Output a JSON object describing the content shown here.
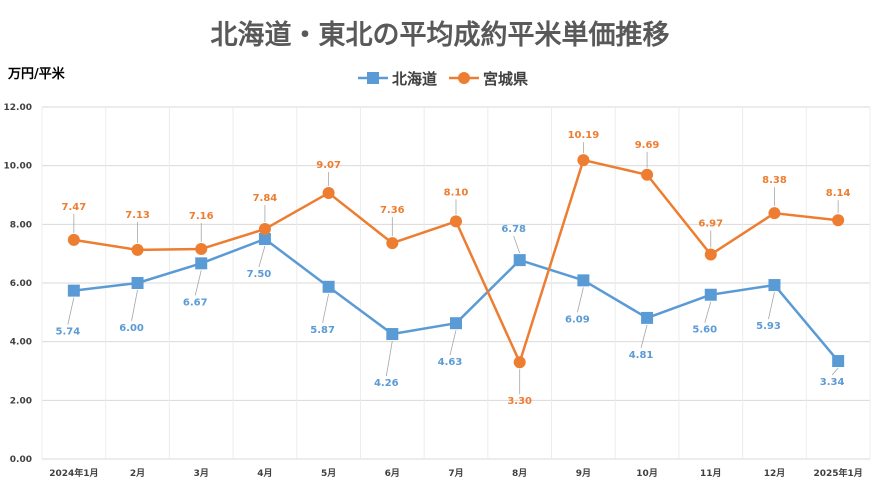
{
  "chart_data": {
    "type": "line",
    "title": "北海道・東北の平均成約平米単価推移",
    "ylabel": "万円/平米",
    "categories": [
      "2024年1月",
      "2月",
      "3月",
      "4月",
      "5月",
      "6月",
      "7月",
      "8月",
      "9月",
      "10月",
      "11月",
      "12月",
      "2025年1月"
    ],
    "ylim": [
      0,
      12
    ],
    "yticks": [
      "0.00",
      "2.00",
      "4.00",
      "6.00",
      "8.00",
      "10.00",
      "12.00"
    ],
    "grid": true,
    "legend_position": "top-center",
    "series": [
      {
        "name": "北海道",
        "color": "#5b9bd5",
        "marker": "square",
        "values": [
          5.74,
          6.0,
          6.67,
          7.5,
          5.87,
          4.26,
          4.63,
          6.78,
          6.09,
          4.81,
          5.6,
          5.93,
          3.34
        ],
        "labels": [
          "5.74",
          "6.00",
          "6.67",
          "7.50",
          "5.87",
          "4.26",
          "4.63",
          "6.78",
          "6.09",
          "4.81",
          "5.60",
          "5.93",
          "3.34"
        ]
      },
      {
        "name": "宮城県",
        "color": "#ed7d31",
        "marker": "circle",
        "values": [
          7.47,
          7.13,
          7.16,
          7.84,
          9.07,
          7.36,
          8.1,
          3.3,
          10.19,
          9.69,
          6.97,
          8.38,
          8.14
        ],
        "labels": [
          "7.47",
          "7.13",
          "7.16",
          "7.84",
          "9.07",
          "7.36",
          "8.10",
          "3.30",
          "10.19",
          "9.69",
          "6.97",
          "8.38",
          "8.14"
        ]
      }
    ]
  }
}
